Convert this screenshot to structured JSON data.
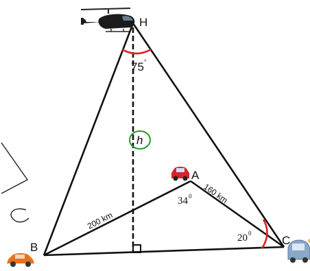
{
  "points": {
    "H": "H",
    "A": "A",
    "B": "B",
    "C": "C"
  },
  "height_label": "h",
  "angle_H": {
    "value": "75",
    "unit": "°"
  },
  "angle_A": {
    "value": "34",
    "unit": "0"
  },
  "angle_C": {
    "value": "20",
    "unit": "0"
  },
  "side_AB": "200 km",
  "side_AC": "160 km",
  "colors": {
    "arc": "#e02020",
    "circle": "#2a9a2a",
    "car_red": "#d8232a",
    "car_orange": "#e8731c",
    "car_blue": "#8aa8c8"
  },
  "icons": [
    "helicopter-icon",
    "red-car-icon",
    "orange-car-icon",
    "blue-car-icon"
  ]
}
